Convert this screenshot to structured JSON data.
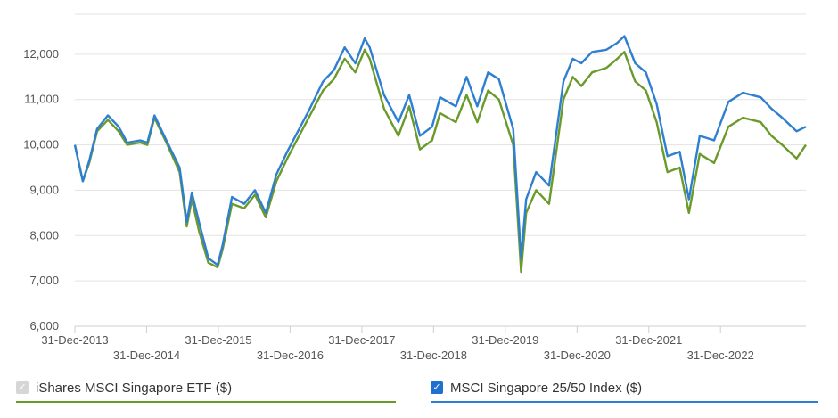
{
  "chart_data": {
    "type": "line",
    "y_ticks": [
      "6,000",
      "7,000",
      "8,000",
      "9,000",
      "10,000",
      "11,000",
      "12,000"
    ],
    "y_tick_values": [
      6000,
      7000,
      8000,
      9000,
      10000,
      11000,
      12000
    ],
    "ylim": [
      6000,
      13000
    ],
    "x_tick_labels": [
      "31-Dec-2013",
      "31-Dec-2014",
      "31-Dec-2015",
      "31-Dec-2016",
      "31-Dec-2017",
      "31-Dec-2018",
      "31-Dec-2019",
      "31-Dec-2020",
      "31-Dec-2021",
      "31-Dec-2022"
    ],
    "x_tick_years": [
      2013.99,
      2014.99,
      2015.99,
      2016.99,
      2017.99,
      2018.99,
      2019.99,
      2020.99,
      2021.99,
      2022.99
    ],
    "xlim": [
      2013.99,
      2024.18
    ],
    "grid": true,
    "legend_position": "bottom",
    "series": [
      {
        "name": "iShares MSCI Singapore ETF ($)",
        "color": "#6a9a2a",
        "checked": true,
        "x": [
          2013.99,
          2014.1,
          2014.19,
          2014.3,
          2014.45,
          2014.6,
          2014.72,
          2014.9,
          2015.0,
          2015.1,
          2015.28,
          2015.45,
          2015.55,
          2015.62,
          2015.72,
          2015.85,
          2015.98,
          2016.05,
          2016.18,
          2016.35,
          2016.5,
          2016.65,
          2016.8,
          2016.95,
          2017.05,
          2017.25,
          2017.45,
          2017.6,
          2017.75,
          2017.9,
          2018.03,
          2018.1,
          2018.3,
          2018.5,
          2018.65,
          2018.8,
          2018.97,
          2019.08,
          2019.3,
          2019.45,
          2019.6,
          2019.75,
          2019.9,
          2020.1,
          2020.21,
          2020.28,
          2020.42,
          2020.6,
          2020.8,
          2020.93,
          2021.05,
          2021.2,
          2021.4,
          2021.55,
          2021.65,
          2021.8,
          2021.95,
          2022.1,
          2022.25,
          2022.42,
          2022.55,
          2022.7,
          2022.9,
          2023.1,
          2023.3,
          2023.55,
          2023.7,
          2023.85,
          2024.05,
          2024.18
        ],
        "y": [
          10000,
          9200,
          9600,
          10300,
          10550,
          10300,
          10000,
          10050,
          10000,
          10600,
          10000,
          9400,
          8200,
          8800,
          8100,
          7400,
          7300,
          7700,
          8700,
          8600,
          8900,
          8400,
          9200,
          9700,
          10000,
          10600,
          11200,
          11450,
          11900,
          11600,
          12100,
          11900,
          10800,
          10200,
          10850,
          9900,
          10100,
          10700,
          10500,
          11100,
          10500,
          11200,
          11000,
          10000,
          7200,
          8500,
          9000,
          8700,
          11000,
          11500,
          11300,
          11600,
          11700,
          11900,
          12050,
          11400,
          11200,
          10500,
          9400,
          9500,
          8500,
          9800,
          9600,
          10400,
          10600,
          10500,
          10200,
          10000,
          9700,
          10000
        ]
      },
      {
        "name": "MSCI Singapore 25/50 Index ($)",
        "color": "#2f7fd0",
        "checked": true,
        "x": [
          2013.99,
          2014.1,
          2014.19,
          2014.3,
          2014.45,
          2014.6,
          2014.72,
          2014.9,
          2015.0,
          2015.1,
          2015.28,
          2015.45,
          2015.55,
          2015.62,
          2015.72,
          2015.85,
          2015.98,
          2016.05,
          2016.18,
          2016.35,
          2016.5,
          2016.65,
          2016.8,
          2016.95,
          2017.05,
          2017.25,
          2017.45,
          2017.6,
          2017.75,
          2017.9,
          2018.03,
          2018.1,
          2018.3,
          2018.5,
          2018.65,
          2018.8,
          2018.97,
          2019.08,
          2019.3,
          2019.45,
          2019.6,
          2019.75,
          2019.9,
          2020.1,
          2020.21,
          2020.28,
          2020.42,
          2020.6,
          2020.8,
          2020.93,
          2021.05,
          2021.2,
          2021.4,
          2021.55,
          2021.65,
          2021.8,
          2021.95,
          2022.1,
          2022.25,
          2022.42,
          2022.55,
          2022.7,
          2022.9,
          2023.1,
          2023.3,
          2023.55,
          2023.7,
          2023.85,
          2024.05,
          2024.18
        ],
        "y": [
          10000,
          9200,
          9650,
          10350,
          10650,
          10400,
          10050,
          10100,
          10050,
          10650,
          10050,
          9500,
          8300,
          8950,
          8300,
          7500,
          7350,
          7800,
          8850,
          8700,
          9000,
          8500,
          9350,
          9850,
          10150,
          10750,
          11400,
          11650,
          12150,
          11800,
          12350,
          12150,
          11100,
          10500,
          11100,
          10200,
          10400,
          11050,
          10850,
          11500,
          10850,
          11600,
          11450,
          10350,
          7500,
          8800,
          9400,
          9100,
          11400,
          11900,
          11800,
          12050,
          12100,
          12250,
          12400,
          11800,
          11600,
          10900,
          9750,
          9850,
          8800,
          10200,
          10100,
          10950,
          11150,
          11050,
          10800,
          10600,
          10300,
          10400
        ]
      }
    ]
  },
  "legend": [
    {
      "label": "iShares MSCI Singapore ETF ($)",
      "check": "✓",
      "underline_color": "#6a9a2a"
    },
    {
      "label": "MSCI Singapore 25/50 Index ($)",
      "check": "✓",
      "underline_color": "#2f7fd0"
    }
  ]
}
